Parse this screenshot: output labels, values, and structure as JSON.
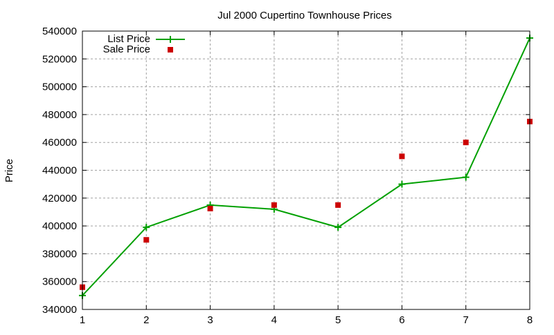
{
  "chart_data": {
    "type": "line",
    "title": "Jul 2000 Cupertino Townhouse Prices",
    "xlabel": "",
    "ylabel": "Price",
    "x": [
      1,
      2,
      3,
      4,
      5,
      6,
      7,
      8
    ],
    "xlim": [
      1,
      8
    ],
    "ylim": [
      340000,
      540000
    ],
    "xticks": [
      "1",
      "2",
      "3",
      "4",
      "5",
      "6",
      "7",
      "8"
    ],
    "yticks": [
      "340000",
      "360000",
      "380000",
      "400000",
      "420000",
      "440000",
      "460000",
      "480000",
      "500000",
      "520000",
      "540000"
    ],
    "grid": true,
    "legend_position": "top-left",
    "series": [
      {
        "name": "List Price",
        "style": "linespoints",
        "marker": "plus",
        "color": "#00a000",
        "values": [
          350000,
          399000,
          415000,
          412000,
          399000,
          430000,
          435000,
          535000
        ]
      },
      {
        "name": "Sale Price",
        "style": "points",
        "marker": "square",
        "color": "#cc0000",
        "values": [
          356000,
          390000,
          412500,
          415000,
          415000,
          450000,
          460000,
          475000
        ]
      }
    ]
  }
}
